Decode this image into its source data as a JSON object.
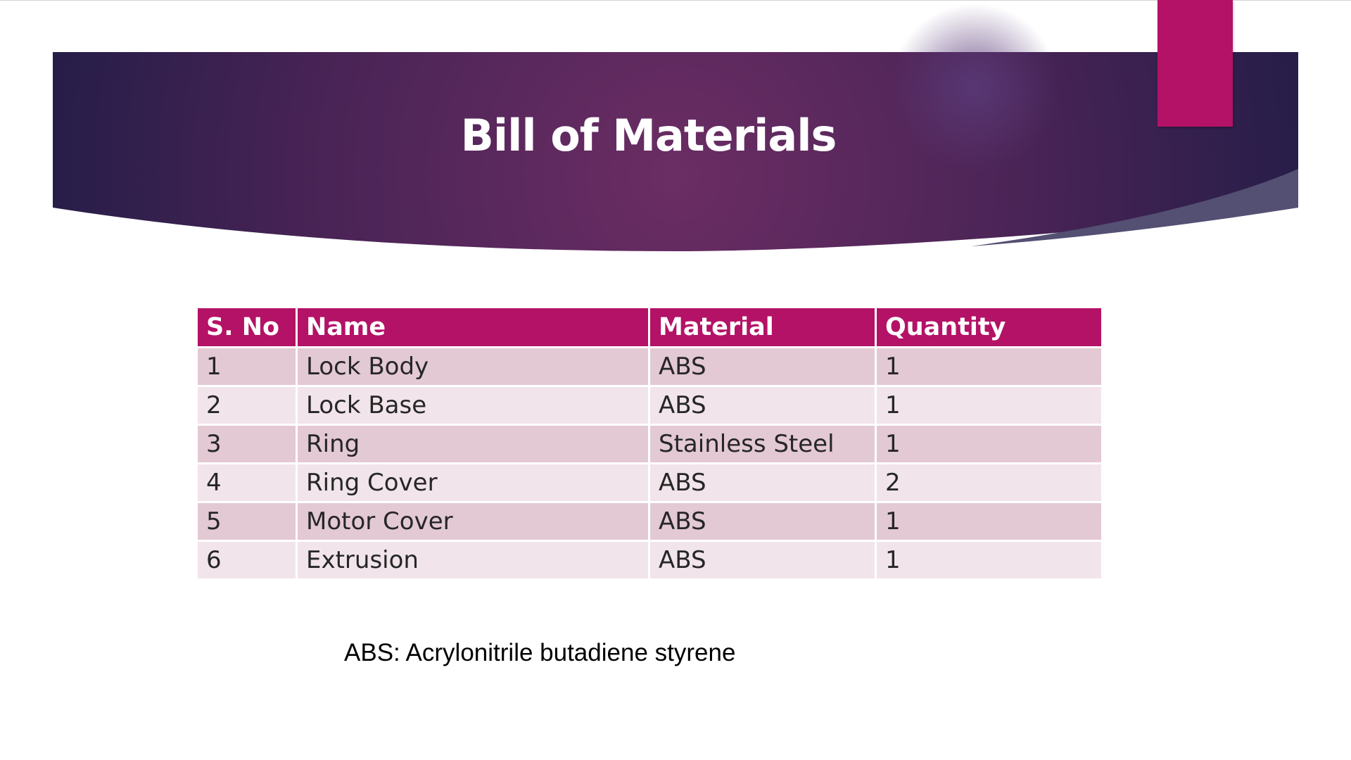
{
  "slide": {
    "title": "Bill of Materials",
    "colors": {
      "banner_dark": "#2a1f4a",
      "banner_mid": "#6a2c63",
      "accent": "#b31266",
      "row_odd": "#e3c9d4",
      "row_even": "#f1e4ea"
    }
  },
  "table": {
    "headers": [
      "S. No",
      "Name",
      "Material",
      "Quantity"
    ],
    "rows": [
      [
        "1",
        "Lock Body",
        "ABS",
        "1"
      ],
      [
        "2",
        "Lock Base",
        "ABS",
        "1"
      ],
      [
        "3",
        "Ring",
        "Stainless Steel",
        "1"
      ],
      [
        "4",
        "Ring Cover",
        "ABS",
        "2"
      ],
      [
        "5",
        "Motor Cover",
        "ABS",
        "1"
      ],
      [
        "6",
        "Extrusion",
        "ABS",
        "1"
      ]
    ]
  },
  "footnote": "ABS: Acrylonitrile butadiene styrene"
}
